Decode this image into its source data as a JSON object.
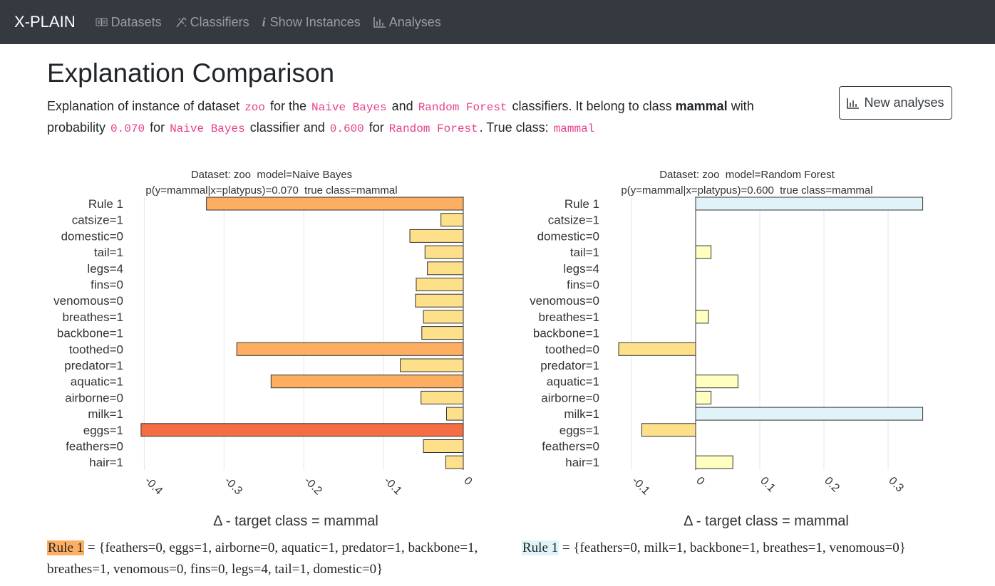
{
  "navbar": {
    "brand": "X-PLAIN",
    "items": [
      "Datasets",
      "Classifiers",
      "Show Instances",
      "Analyses"
    ]
  },
  "header": {
    "title": "Explanation Comparison",
    "button": "New analyses",
    "description": [
      "Explanation of instance of dataset ",
      "zoo",
      " for the ",
      "Naive Bayes",
      " and ",
      "Random Forest",
      " classifiers. It belong to class ",
      "mammal",
      " with probability ",
      "0.070",
      " for ",
      "Naive Bayes",
      " classifier and ",
      "0.600",
      " for ",
      "Random Forest",
      ". True class: ",
      "mammal"
    ]
  },
  "chart_data": [
    {
      "type": "bar",
      "orientation": "horizontal",
      "title": "Dataset: zoo  model=Naive Bayes",
      "subtitle": "p(y=mammal|x=platypus)=0.070  true class=mammal",
      "xlabel": "Δ - target class = mammal",
      "categories": [
        "Rule 1",
        "catsize=1",
        "domestic=0",
        "tail=1",
        "legs=4",
        "fins=0",
        "venomous=0",
        "breathes=1",
        "backbone=1",
        "toothed=0",
        "predator=1",
        "aquatic=1",
        "airborne=0",
        "milk=1",
        "eggs=1",
        "feathers=0",
        "hair=1"
      ],
      "values": [
        -0.322,
        -0.028,
        -0.067,
        -0.048,
        -0.045,
        -0.059,
        -0.06,
        -0.05,
        -0.052,
        -0.284,
        -0.079,
        -0.241,
        -0.053,
        -0.021,
        -0.404,
        -0.05,
        -0.022
      ],
      "colors": [
        "#fdae61",
        "#fee08b",
        "#fee08b",
        "#fee08b",
        "#fee08b",
        "#fee08b",
        "#fee08b",
        "#fee08b",
        "#fee08b",
        "#fdae61",
        "#fee08b",
        "#fdae61",
        "#fee08b",
        "#fee08b",
        "#f46d43",
        "#fee08b",
        "#fee08b"
      ],
      "xlim": [
        -0.42,
        0
      ],
      "xticks": [
        -0.4,
        -0.3,
        -0.2,
        -0.1,
        0
      ],
      "grid": true
    },
    {
      "type": "bar",
      "orientation": "horizontal",
      "title": "Dataset: zoo  model=Random Forest",
      "subtitle": "p(y=mammal|x=platypus)=0.600  true class=mammal",
      "xlabel": "Δ - target class = mammal",
      "categories": [
        "Rule 1",
        "catsize=1",
        "domestic=0",
        "tail=1",
        "legs=4",
        "fins=0",
        "venomous=0",
        "breathes=1",
        "backbone=1",
        "toothed=0",
        "predator=1",
        "aquatic=1",
        "airborne=0",
        "milk=1",
        "eggs=1",
        "feathers=0",
        "hair=1"
      ],
      "values": [
        0.354,
        0,
        0,
        0.024,
        0,
        0,
        0,
        0.02,
        0,
        -0.12,
        0,
        0.066,
        0.024,
        0.354,
        -0.084,
        0,
        0.058
      ],
      "colors": [
        "#e0f3f8",
        "#ffffbf",
        "#ffffbf",
        "#ffffbf",
        "#ffffbf",
        "#ffffbf",
        "#ffffbf",
        "#ffffbf",
        "#ffffbf",
        "#fee08b",
        "#ffffbf",
        "#ffffbf",
        "#ffffbf",
        "#e0f3f8",
        "#fee08b",
        "#ffffbf",
        "#ffffbf"
      ],
      "xlim": [
        -0.14,
        0.36
      ],
      "xticks": [
        -0.1,
        0,
        0.1,
        0.2,
        0.3
      ],
      "grid": true
    }
  ],
  "rules": [
    {
      "label": "Rule 1",
      "color": "#fdae61",
      "text": "= {feathers=0, eggs=1, airborne=0, aquatic=1, predator=1, backbone=1, breathes=1, venomous=0, fins=0, legs=4, tail=1, domestic=0}"
    },
    {
      "label": "Rule 1",
      "color": "#e0f3f8",
      "text": "= {feathers=0, milk=1, backbone=1, breathes=1, venomous=0}"
    }
  ]
}
